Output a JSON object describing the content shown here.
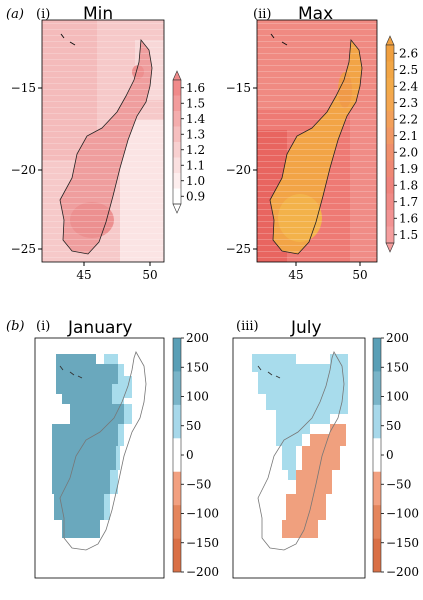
{
  "panel_a": {
    "label": "(a)",
    "maps": [
      {
        "sublabel": "(i)",
        "title": "Min",
        "colorbar": {
          "ticks": [
            "1.6",
            "1.5",
            "1.4",
            "1.3",
            "1.2",
            "1.1",
            "1.0",
            "0.9"
          ],
          "colors": [
            "#f08a8a",
            "#f29c9c",
            "#f4adad",
            "#f6bfbf",
            "#f8d0d0",
            "#fae0e0",
            "#fdeeee",
            "#ffffff"
          ]
        }
      },
      {
        "sublabel": "(ii)",
        "title": "Max",
        "colorbar": {
          "ticks": [
            "2.6",
            "2.5",
            "2.4",
            "2.3",
            "2.2",
            "2.1",
            "2.0",
            "1.9",
            "1.8",
            "1.7",
            "1.6",
            "1.5"
          ],
          "colors": [
            "#f0a040",
            "#f2a646",
            "#f3aa4a",
            "#f4a750",
            "#f3a05a",
            "#f29864",
            "#f08f6c",
            "#ef8874",
            "#ef837c",
            "#f08a86",
            "#f29393",
            "#f59e9e"
          ]
        }
      }
    ],
    "yaxis_ticks": [
      "−15",
      "−20",
      "−25"
    ],
    "xaxis_ticks": [
      "45",
      "50"
    ]
  },
  "panel_b": {
    "label": "(b)",
    "maps": [
      {
        "sublabel": "(i)",
        "title": "January"
      },
      {
        "sublabel": "(iii)",
        "title": "July"
      }
    ],
    "colorbar": {
      "ticks": [
        "200",
        "150",
        "100",
        "50",
        "0",
        "−50",
        "−100",
        "−150",
        "−200"
      ],
      "colors": [
        "#5a9fb6",
        "#79b4c8",
        "#a7d8ea",
        "#ffffff",
        "#f2a080",
        "#e4855c",
        "#d97046"
      ]
    }
  },
  "colors": {
    "min_background": "#f6c4c4",
    "min_land": "#ef9a9a",
    "max_background": "#ec6e6a",
    "max_land": "#f2a245",
    "jan_blue": "#6aa8bd",
    "light_blue": "#a8dcec",
    "orange": "#f0a07e"
  }
}
